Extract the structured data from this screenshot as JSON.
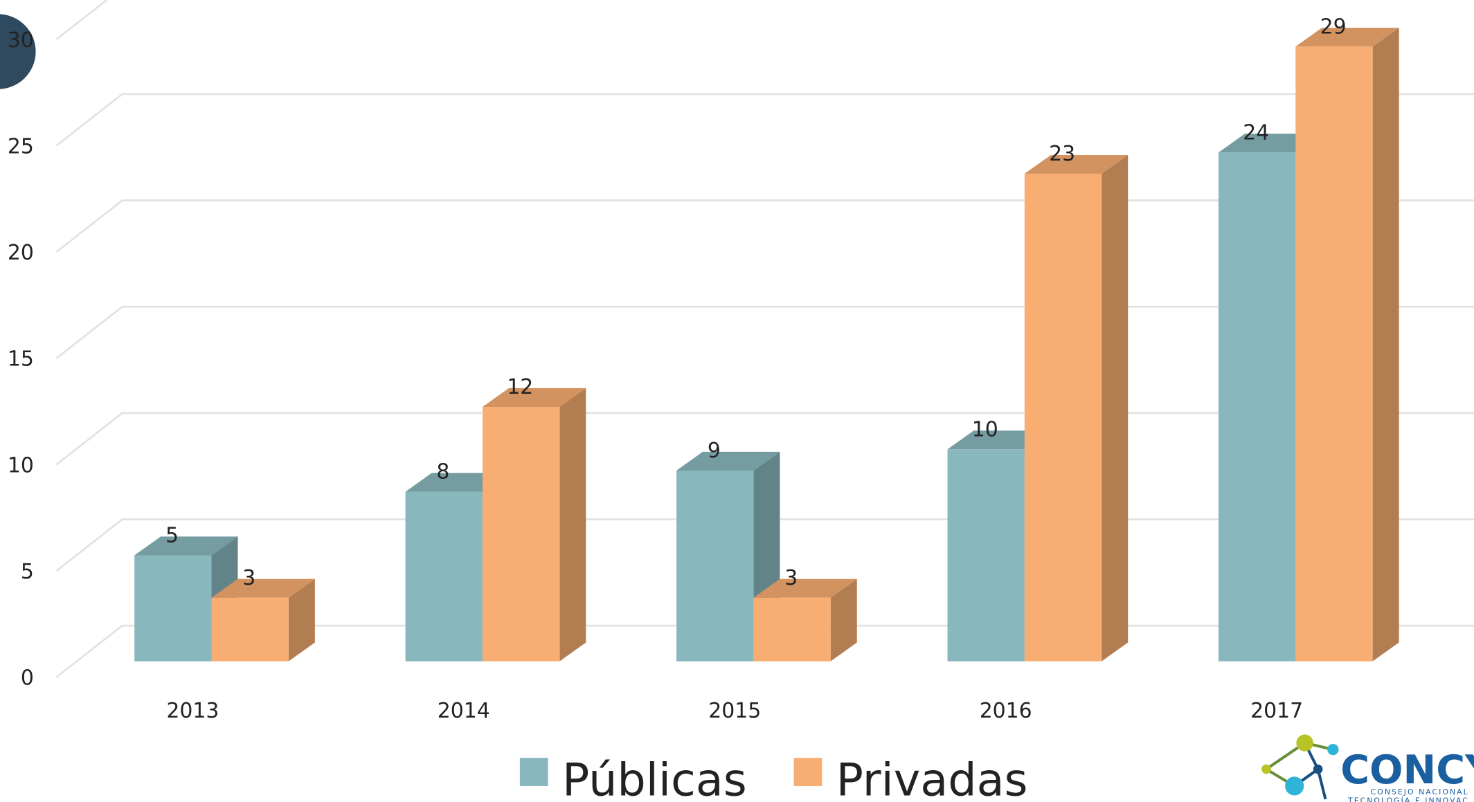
{
  "chart_data": {
    "type": "bar3d",
    "categories": [
      "2013",
      "2014",
      "2015",
      "2016",
      "2017"
    ],
    "series": [
      {
        "name": "Públicas",
        "color": "#88b7bd",
        "values": [
          5,
          8,
          9,
          10,
          24
        ]
      },
      {
        "name": "Privadas",
        "color": "#f8ad72",
        "values": [
          3,
          12,
          3,
          23,
          29
        ]
      }
    ],
    "ylim": [
      0,
      30
    ],
    "yticks": [
      0,
      5,
      10,
      15,
      20,
      25,
      30
    ],
    "grid": true,
    "legend": "bottom"
  },
  "logo": {
    "name": "CONCY",
    "line1": "CONSEJO NACIONAL",
    "line2": "TECNOLOGÍA E INNOVAC"
  }
}
